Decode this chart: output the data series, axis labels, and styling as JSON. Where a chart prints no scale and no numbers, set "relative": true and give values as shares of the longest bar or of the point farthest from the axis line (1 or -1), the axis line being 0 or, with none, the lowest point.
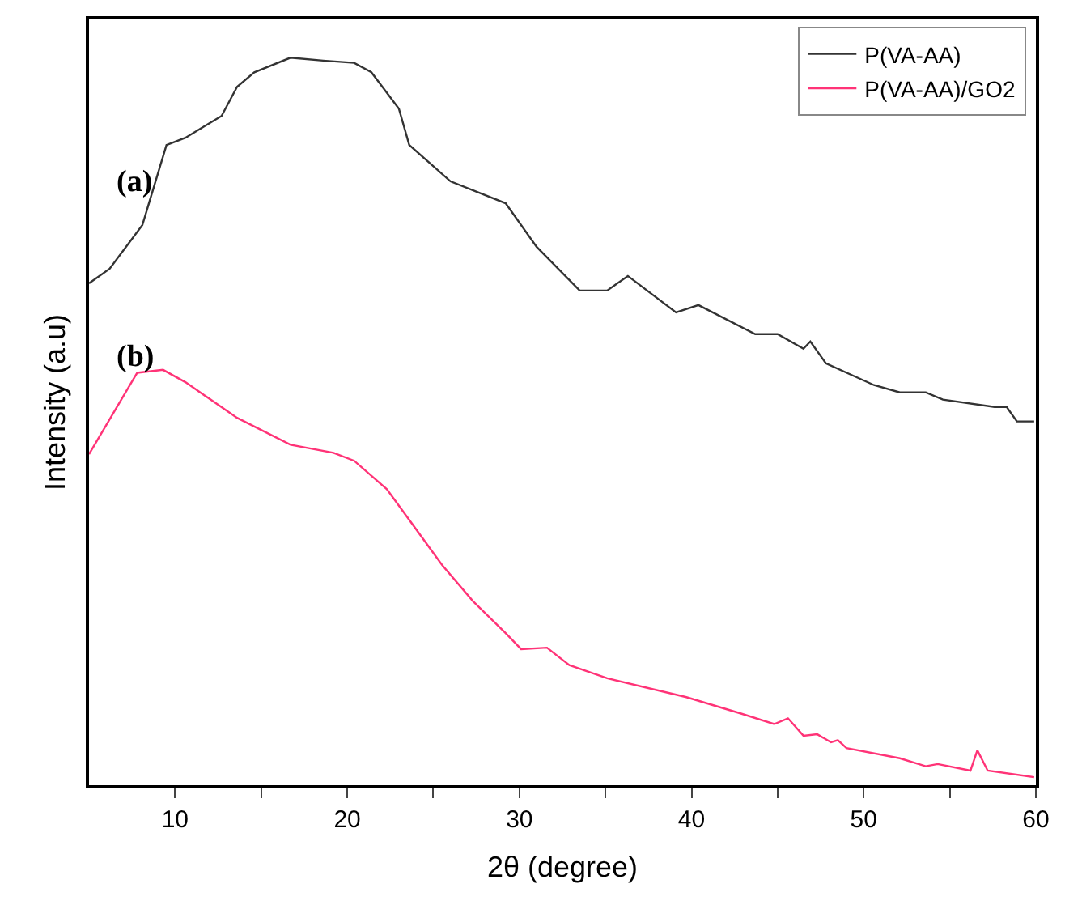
{
  "chart_data": {
    "type": "line",
    "xlabel": "2θ (degree)",
    "ylabel": "Intensity (a.u)",
    "relative": true,
    "xlim": [
      5,
      60
    ],
    "xticks": [
      {
        "value": 10,
        "label": "10"
      },
      {
        "value": 15,
        "label": null
      },
      {
        "value": 20,
        "label": "20"
      },
      {
        "value": 25,
        "label": null
      },
      {
        "value": 30,
        "label": "30"
      },
      {
        "value": 35,
        "label": null
      },
      {
        "value": 40,
        "label": "40"
      },
      {
        "value": 45,
        "label": null
      },
      {
        "value": 50,
        "label": "50"
      },
      {
        "value": 55,
        "label": null
      },
      {
        "value": 60,
        "label": "60"
      }
    ],
    "tick_labels": "x",
    "legend": "top right",
    "marker": "none",
    "line_style": "solid",
    "series": [
      {
        "name": "P(VA-AA)",
        "color": "#333333",
        "x": [
          5,
          6.2,
          8.1,
          9.5,
          10.6,
          12.7,
          13.6,
          14.6,
          16.7,
          18.6,
          20.4,
          21.4,
          23,
          23.6,
          26,
          29.2,
          31,
          33.5,
          35.1,
          36.3,
          39.1,
          40.4,
          43.7,
          45,
          46.5,
          46.9,
          47.8,
          50.6,
          52.1,
          53.6,
          54.6,
          57.6,
          58.3,
          58.9,
          59.9
        ],
        "values": [
          0.69,
          0.71,
          0.77,
          0.88,
          0.89,
          0.92,
          0.96,
          0.98,
          1.0,
          0.996,
          0.993,
          0.98,
          0.93,
          0.88,
          0.83,
          0.8,
          0.74,
          0.68,
          0.68,
          0.7,
          0.65,
          0.66,
          0.62,
          0.62,
          0.6,
          0.61,
          0.58,
          0.55,
          0.54,
          0.54,
          0.53,
          0.52,
          0.52,
          0.5,
          0.5
        ]
      },
      {
        "name": "P(VA-AA)/GO2",
        "color": "#ff3377",
        "x": [
          5,
          7.8,
          9.3,
          10.6,
          13.6,
          16.7,
          19.2,
          20.4,
          22.3,
          25.5,
          27.3,
          29.2,
          30.1,
          31.6,
          32.9,
          35.1,
          39.7,
          42.8,
          44.8,
          45.6,
          46.5,
          47.3,
          48.1,
          48.5,
          49,
          52.1,
          53.6,
          54.3,
          56.2,
          56.6,
          57.2,
          59.9
        ],
        "values": [
          0.455,
          0.567,
          0.571,
          0.554,
          0.505,
          0.468,
          0.457,
          0.446,
          0.407,
          0.303,
          0.253,
          0.209,
          0.187,
          0.189,
          0.165,
          0.147,
          0.121,
          0.099,
          0.084,
          0.092,
          0.068,
          0.07,
          0.059,
          0.062,
          0.051,
          0.037,
          0.026,
          0.029,
          0.02,
          0.048,
          0.02,
          0.011
        ]
      }
    ],
    "annotations": [
      "(a)",
      "(b)"
    ]
  }
}
